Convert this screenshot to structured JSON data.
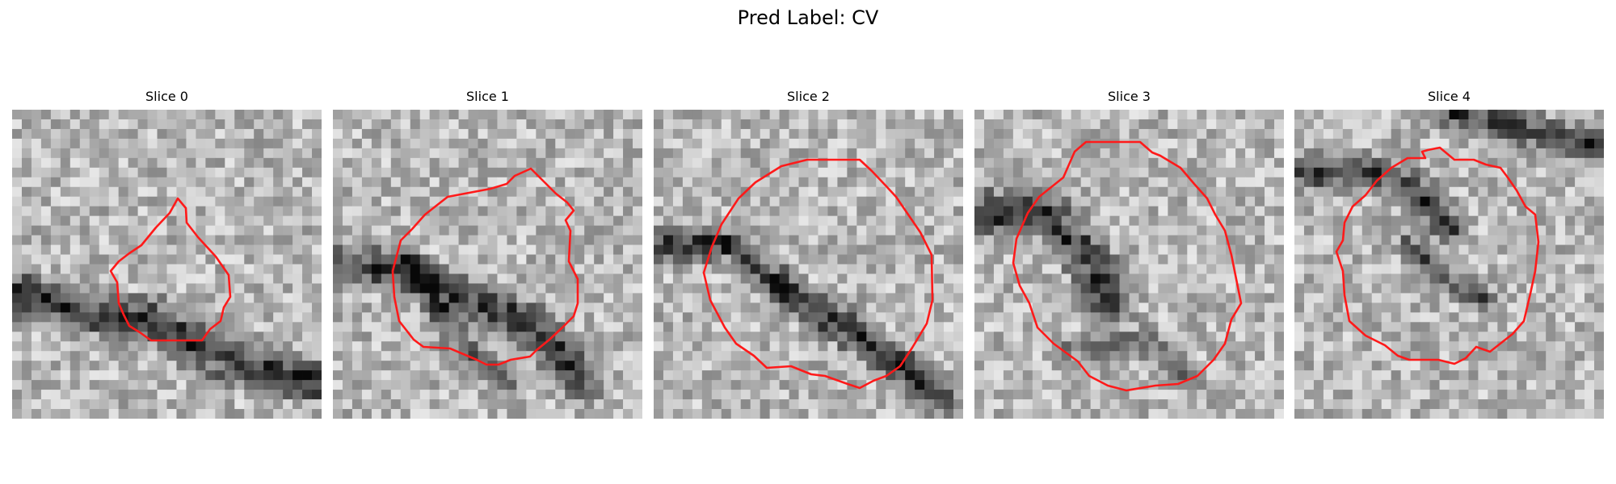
{
  "figure": {
    "title": "Pred Label: CV",
    "contour_color": "#ff1a1a"
  },
  "slices": [
    {
      "title": "Slice 0",
      "label": "0",
      "texture_seed": 11
    },
    {
      "title": "Slice 1",
      "label": "1",
      "texture_seed": 23
    },
    {
      "title": "Slice 2",
      "label": "2",
      "texture_seed": 37
    },
    {
      "title": "Slice 3",
      "label": "3",
      "texture_seed": 41
    },
    {
      "title": "Slice 4",
      "label": "4",
      "texture_seed": 59
    }
  ]
}
